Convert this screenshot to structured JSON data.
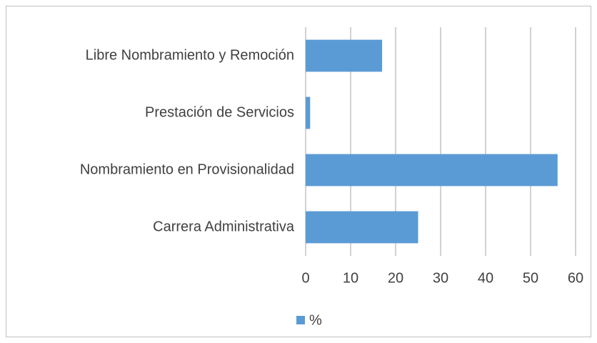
{
  "chart_data": {
    "type": "bar",
    "orientation": "horizontal",
    "categories": [
      "Libre Nombramiento y Remoción",
      "Prestación de Servicios",
      "Nombramiento en Provisionalidad",
      "Carrera Administrativa"
    ],
    "series": [
      {
        "name": "%",
        "color": "#5b9bd5",
        "values": [
          17,
          1,
          56,
          25
        ]
      }
    ],
    "xlim": [
      0,
      60
    ],
    "xticks": [
      0,
      10,
      20,
      30,
      40,
      50,
      60
    ],
    "grid": true,
    "legend": "bottom"
  }
}
